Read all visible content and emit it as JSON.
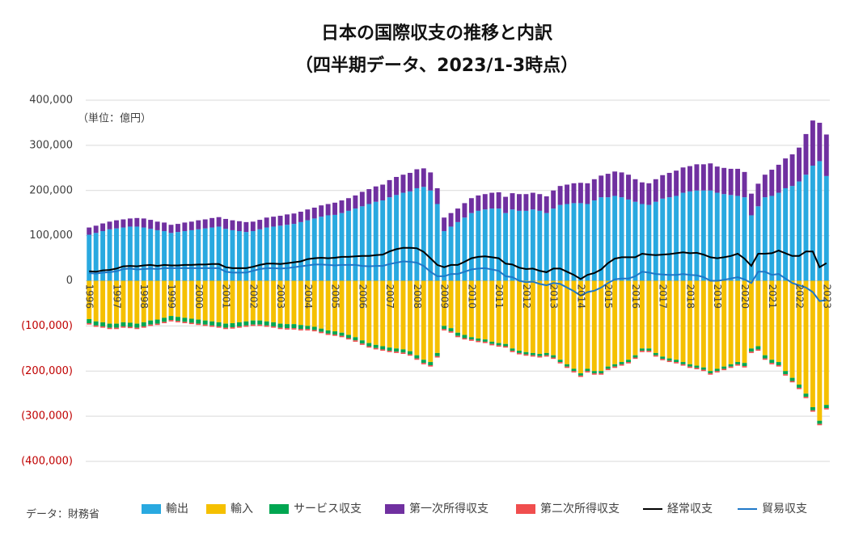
{
  "chart_data": {
    "type": "bar",
    "title": "日本の国際収支の推移と内訳",
    "subtitle": "（四半期データ、2023/1-3時点）",
    "unit_note": "（単位：億円）",
    "source": "データ：財務省",
    "categories": [
      "1996",
      null,
      null,
      null,
      "1997",
      null,
      null,
      null,
      "1998",
      null,
      null,
      null,
      "1999",
      null,
      null,
      null,
      "2000",
      null,
      null,
      null,
      "2001",
      null,
      null,
      null,
      "2002",
      null,
      null,
      null,
      "2003",
      null,
      null,
      null,
      "2004",
      null,
      null,
      null,
      "2005",
      null,
      null,
      null,
      "2006",
      null,
      null,
      null,
      "2007",
      null,
      null,
      null,
      "2008",
      null,
      null,
      null,
      "2009",
      null,
      null,
      null,
      "2010",
      null,
      null,
      null,
      "2011",
      null,
      null,
      null,
      "2012",
      null,
      null,
      null,
      "2013",
      null,
      null,
      null,
      "2014",
      null,
      null,
      null,
      "2015",
      null,
      null,
      null,
      "2016",
      null,
      null,
      null,
      "2017",
      null,
      null,
      null,
      "2018",
      null,
      null,
      null,
      "2019",
      null,
      null,
      null,
      "2020",
      null,
      null,
      null,
      "2021",
      null,
      null,
      null,
      "2022",
      null,
      null,
      null,
      "2023"
    ],
    "series": [
      {
        "name": "輸出",
        "type": "bar",
        "color": "#29a9e0",
        "values": [
          102000,
          106000,
          110000,
          114000,
          116000,
          118000,
          120000,
          120000,
          118000,
          115000,
          112000,
          110000,
          106000,
          108000,
          110000,
          112000,
          114000,
          116000,
          118000,
          120000,
          115000,
          112000,
          110000,
          108000,
          110000,
          114000,
          118000,
          120000,
          122000,
          124000,
          126000,
          130000,
          134000,
          138000,
          142000,
          145000,
          146000,
          150000,
          155000,
          160000,
          165000,
          170000,
          175000,
          178000,
          185000,
          190000,
          195000,
          198000,
          205000,
          208000,
          200000,
          170000,
          110000,
          120000,
          130000,
          140000,
          150000,
          155000,
          158000,
          160000,
          160000,
          150000,
          158000,
          155000,
          155000,
          158000,
          155000,
          150000,
          160000,
          168000,
          170000,
          172000,
          172000,
          170000,
          178000,
          185000,
          185000,
          188000,
          185000,
          180000,
          175000,
          170000,
          168000,
          175000,
          182000,
          185000,
          188000,
          195000,
          198000,
          200000,
          200000,
          200000,
          195000,
          192000,
          190000,
          188000,
          185000,
          145000,
          165000,
          185000,
          188000,
          195000,
          205000,
          210000,
          220000,
          235000,
          255000,
          265000,
          232000
        ]
      },
      {
        "name": "輸入",
        "type": "bar",
        "color": "#f5c000",
        "values": [
          -85000,
          -90000,
          -92000,
          -95000,
          -95000,
          -92000,
          -93000,
          -95000,
          -92000,
          -88000,
          -86000,
          -82000,
          -78000,
          -80000,
          -82000,
          -84000,
          -86000,
          -88000,
          -90000,
          -92000,
          -95000,
          -94000,
          -92000,
          -90000,
          -88000,
          -88000,
          -90000,
          -92000,
          -95000,
          -96000,
          -96000,
          -98000,
          -100000,
          -102000,
          -106000,
          -110000,
          -112000,
          -115000,
          -120000,
          -125000,
          -132000,
          -138000,
          -142000,
          -145000,
          -148000,
          -150000,
          -152000,
          -156000,
          -165000,
          -175000,
          -180000,
          -160000,
          -100000,
          -105000,
          -115000,
          -120000,
          -125000,
          -128000,
          -130000,
          -135000,
          -138000,
          -140000,
          -150000,
          -155000,
          -158000,
          -160000,
          -162000,
          -160000,
          -165000,
          -175000,
          -185000,
          -195000,
          -205000,
          -195000,
          -200000,
          -200000,
          -190000,
          -185000,
          -180000,
          -175000,
          -165000,
          -150000,
          -150000,
          -160000,
          -168000,
          -172000,
          -175000,
          -180000,
          -185000,
          -188000,
          -192000,
          -200000,
          -195000,
          -190000,
          -185000,
          -180000,
          -182000,
          -150000,
          -145000,
          -165000,
          -175000,
          -180000,
          -200000,
          -215000,
          -230000,
          -250000,
          -280000,
          -310000,
          -275000
        ]
      },
      {
        "name": "サービス収支",
        "type": "bar",
        "color": "#00a651",
        "values": [
          -9000,
          -9000,
          -9000,
          -9000,
          -9000,
          -9000,
          -9000,
          -9000,
          -9000,
          -9000,
          -9000,
          -9000,
          -9000,
          -9000,
          -9000,
          -9000,
          -9000,
          -9000,
          -9000,
          -9000,
          -9000,
          -9000,
          -9000,
          -9000,
          -9000,
          -9000,
          -9000,
          -9000,
          -9000,
          -9000,
          -9000,
          -9000,
          -7000,
          -7000,
          -7000,
          -7000,
          -7000,
          -7000,
          -7000,
          -7000,
          -7000,
          -7000,
          -7000,
          -7000,
          -7000,
          -7000,
          -7000,
          -7000,
          -7000,
          -7000,
          -7000,
          -7000,
          -7000,
          -7000,
          -7000,
          -7000,
          -5000,
          -5000,
          -5000,
          -5000,
          -5000,
          -5000,
          -5000,
          -5000,
          -5000,
          -5000,
          -5000,
          -5000,
          -5000,
          -5000,
          -5000,
          -5000,
          -5000,
          -5000,
          -5000,
          -5000,
          -5000,
          -5000,
          -5000,
          -5000,
          -5000,
          -5000,
          -5000,
          -5000,
          -5000,
          -5000,
          -5000,
          -5000,
          -5000,
          -5000,
          -5000,
          -5000,
          -5000,
          -5000,
          -5000,
          -5000,
          -7000,
          -7000,
          -7000,
          -7000,
          -7000,
          -7000,
          -7000,
          -7000,
          -7000,
          -7000,
          -7000,
          -7000,
          -7000
        ]
      },
      {
        "name": "第一次所得収支",
        "type": "bar",
        "color": "#7030a0",
        "values": [
          16000,
          16000,
          17000,
          17000,
          18000,
          18000,
          18000,
          19000,
          20000,
          20000,
          19000,
          19000,
          18000,
          18000,
          19000,
          19000,
          20000,
          20000,
          21000,
          21000,
          22000,
          22000,
          22000,
          22000,
          21000,
          21000,
          22000,
          22000,
          22000,
          23000,
          23000,
          23000,
          24000,
          24000,
          25000,
          25000,
          27000,
          28000,
          28000,
          29000,
          32000,
          33000,
          34000,
          35000,
          38000,
          40000,
          40000,
          41000,
          42000,
          41000,
          40000,
          35000,
          30000,
          30000,
          30000,
          32000,
          33000,
          34000,
          34000,
          35000,
          36000,
          36000,
          36000,
          37000,
          37000,
          37000,
          37000,
          37000,
          40000,
          42000,
          43000,
          44000,
          45000,
          46000,
          47000,
          48000,
          52000,
          54000,
          55000,
          55000,
          50000,
          48000,
          48000,
          50000,
          52000,
          54000,
          56000,
          56000,
          56000,
          58000,
          58000,
          60000,
          58000,
          58000,
          58000,
          60000,
          56000,
          48000,
          50000,
          50000,
          58000,
          62000,
          66000,
          70000,
          75000,
          90000,
          100000,
          85000,
          92000
        ]
      },
      {
        "name": "第二次所得収支",
        "type": "bar",
        "color": "#f04e4e",
        "values": [
          -3000,
          -3000,
          -3000,
          -3000,
          -3000,
          -3000,
          -3000,
          -3000,
          -3000,
          -3000,
          -3000,
          -3000,
          -3000,
          -3000,
          -3000,
          -3000,
          -3000,
          -3000,
          -3000,
          -3000,
          -3000,
          -3000,
          -3000,
          -3000,
          -3000,
          -3000,
          -3000,
          -3000,
          -3000,
          -3000,
          -3000,
          -3000,
          -3000,
          -3000,
          -3000,
          -3000,
          -3000,
          -3000,
          -3000,
          -3000,
          -3000,
          -3000,
          -3000,
          -3000,
          -3000,
          -3000,
          -3000,
          -3000,
          -3000,
          -3000,
          -3000,
          -3000,
          -3000,
          -3000,
          -3000,
          -3000,
          -3000,
          -3000,
          -3000,
          -3000,
          -3000,
          -3000,
          -3000,
          -3000,
          -3000,
          -3000,
          -3000,
          -3000,
          -3000,
          -3000,
          -3000,
          -3000,
          -3000,
          -3000,
          -3000,
          -3000,
          -3000,
          -3000,
          -3000,
          -3000,
          -3000,
          -3000,
          -3000,
          -3000,
          -3000,
          -3000,
          -3000,
          -3000,
          -3000,
          -3000,
          -3000,
          -3000,
          -3000,
          -3000,
          -3000,
          -3000,
          -3000,
          -3000,
          -3000,
          -3000,
          -3000,
          -3000,
          -3000,
          -3000,
          -3000,
          -3000,
          -3000,
          -3000,
          -3000
        ]
      },
      {
        "name": "経常収支",
        "type": "line",
        "color": "#000000",
        "values": [
          21000,
          20000,
          23000,
          24000,
          27000,
          32000,
          33000,
          32000,
          34000,
          35000,
          33000,
          35000,
          34000,
          34000,
          35000,
          35000,
          36000,
          36000,
          37000,
          37000,
          30000,
          28000,
          28000,
          28000,
          31000,
          35000,
          38000,
          38000,
          37000,
          39000,
          41000,
          43000,
          48000,
          50000,
          51000,
          50000,
          51000,
          53000,
          53000,
          54000,
          55000,
          55000,
          57000,
          58000,
          65000,
          70000,
          73000,
          73000,
          72000,
          64000,
          50000,
          35000,
          30000,
          35000,
          35000,
          42000,
          50000,
          53000,
          54000,
          52000,
          50000,
          38000,
          36000,
          29000,
          26000,
          27000,
          22000,
          19000,
          27000,
          27000,
          20000,
          13000,
          4000,
          13000,
          17000,
          25000,
          39000,
          49000,
          52000,
          52000,
          52000,
          60000,
          58000,
          57000,
          58000,
          59000,
          61000,
          63000,
          61000,
          62000,
          58000,
          52000,
          50000,
          52000,
          55000,
          60000,
          49000,
          33000,
          60000,
          60000,
          61000,
          67000,
          61000,
          55000,
          55000,
          65000,
          65000,
          30000,
          39000
        ]
      },
      {
        "name": "貿易収支",
        "type": "line",
        "color": "#1f78c8",
        "values": [
          17000,
          16000,
          18000,
          19000,
          21000,
          26000,
          27000,
          25000,
          26000,
          27000,
          26000,
          28000,
          28000,
          28000,
          28000,
          28000,
          28000,
          28000,
          28000,
          28000,
          20000,
          18000,
          18000,
          18000,
          22000,
          26000,
          28000,
          28000,
          27000,
          28000,
          30000,
          32000,
          34000,
          36000,
          36000,
          35000,
          34000,
          35000,
          35000,
          35000,
          33000,
          32000,
          33000,
          33000,
          37000,
          40000,
          43000,
          42000,
          40000,
          33000,
          20000,
          10000,
          10000,
          15000,
          15000,
          20000,
          25000,
          27000,
          28000,
          25000,
          22000,
          10000,
          8000,
          0,
          -3000,
          -2000,
          -7000,
          -10000,
          -5000,
          -7000,
          -15000,
          -23000,
          -33000,
          -25000,
          -22000,
          -15000,
          -5000,
          3000,
          5000,
          5000,
          10000,
          20000,
          18000,
          15000,
          14000,
          13000,
          13000,
          15000,
          13000,
          12000,
          8000,
          0,
          0,
          2000,
          5000,
          8000,
          3000,
          -5000,
          20000,
          20000,
          13000,
          15000,
          5000,
          -5000,
          -10000,
          -15000,
          -25000,
          -45000,
          -43000
        ]
      }
    ],
    "ylim": [
      -400000,
      400000
    ],
    "yticks": [
      {
        "value": -400000,
        "label": "(400,000)"
      },
      {
        "value": -300000,
        "label": "(300,000)"
      },
      {
        "value": -200000,
        "label": "(200,000)"
      },
      {
        "value": -100000,
        "label": "(100,000)"
      },
      0,
      {
        "value": 100000,
        "label": "100,000"
      },
      {
        "value": 200000,
        "label": "200,000"
      },
      {
        "value": 300000,
        "label": "300,000"
      },
      {
        "value": 400000,
        "label": "400,000"
      }
    ],
    "grid": true,
    "negative_tick_color": "#c00000",
    "legend": "bottom"
  }
}
